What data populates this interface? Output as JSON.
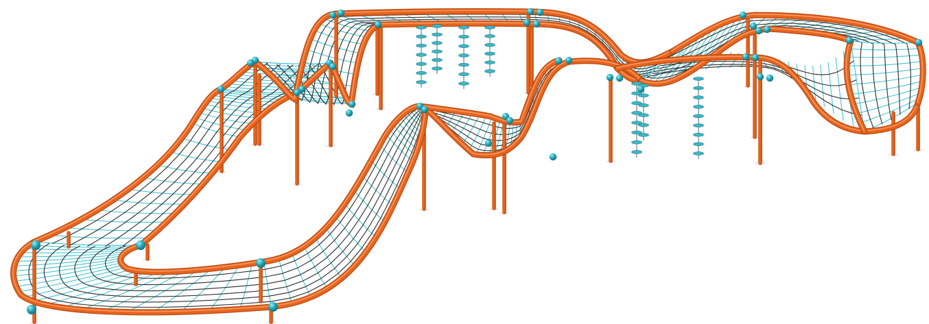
{
  "scene": {
    "subject": "rope-net-climbing-course-illustration",
    "colors": {
      "background": "#ffffff",
      "frame": "#e8641e",
      "frame_dark": "#b84a12",
      "net_rope": "#2a2a2a",
      "net_rope_cyan": "#45c4d2",
      "connector": "#2aa3b3",
      "connector_light": "#7fe0ea",
      "disc": "#3fb6c4",
      "shadow": "#e9e9e9"
    }
  }
}
